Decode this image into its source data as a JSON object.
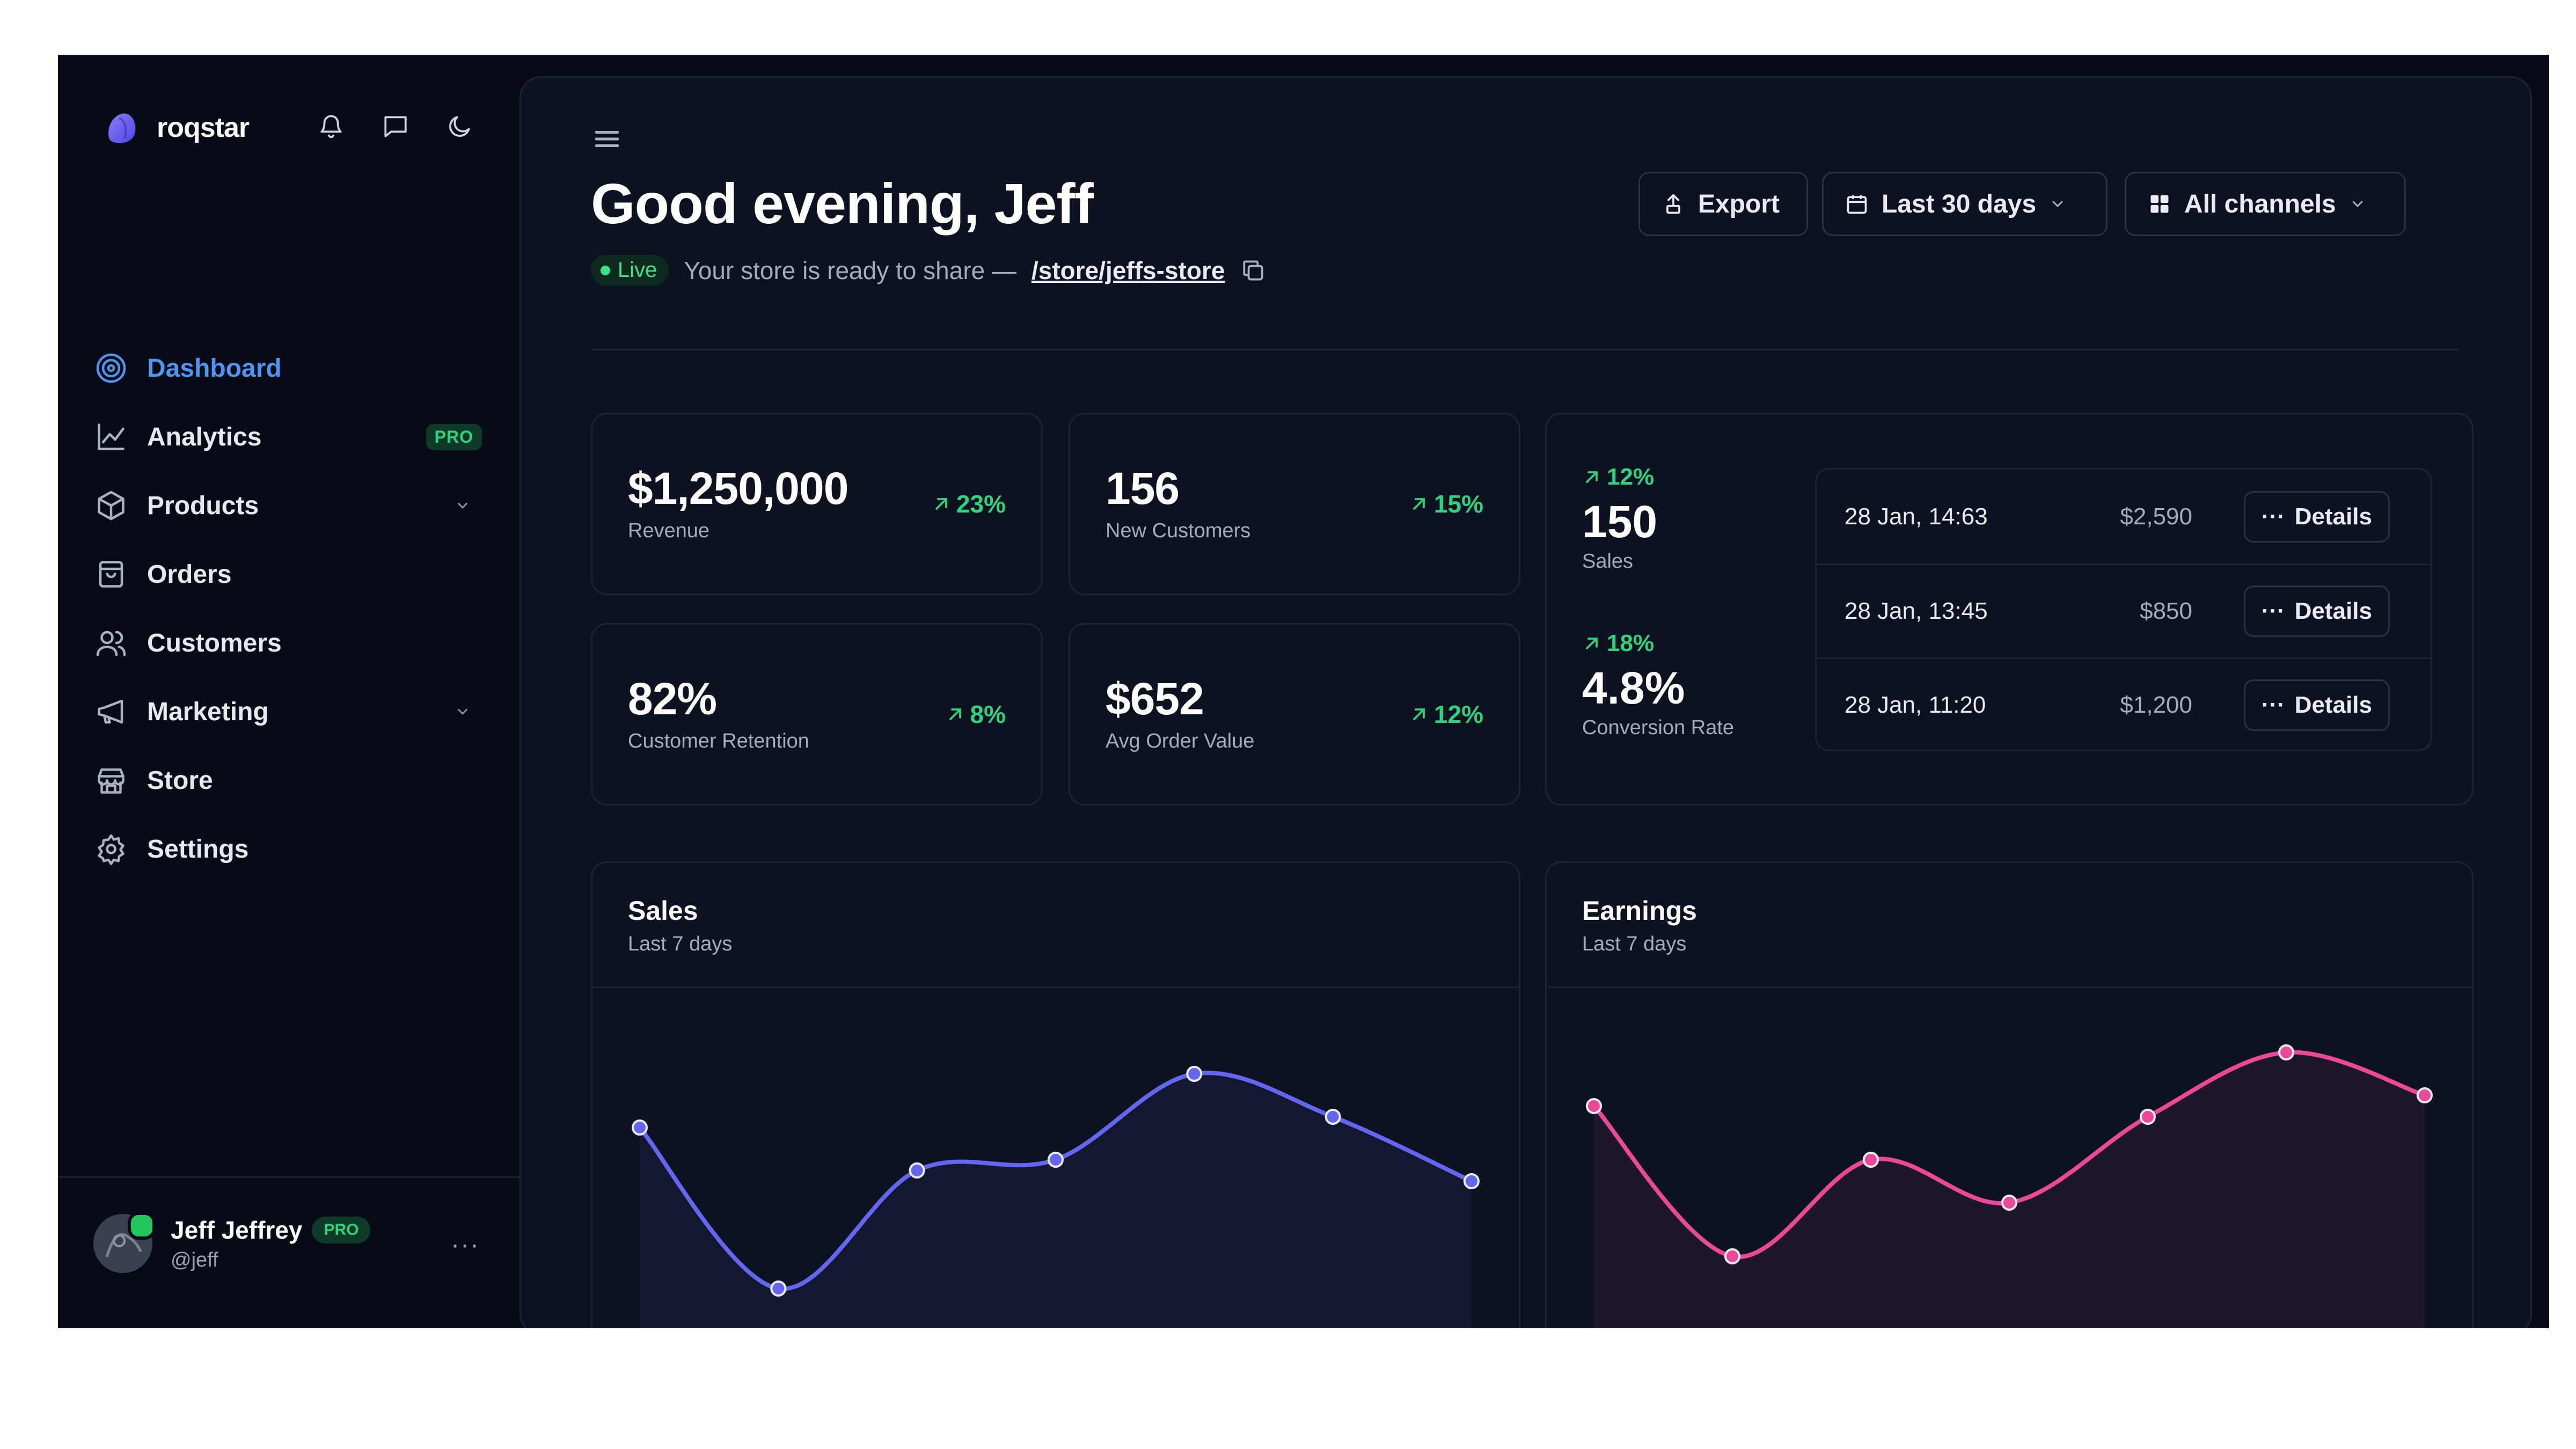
{
  "app": {
    "name": "roqstar"
  },
  "sidebar": {
    "items": [
      {
        "label": "Dashboard",
        "icon": "target-icon",
        "active": true
      },
      {
        "label": "Analytics",
        "icon": "chart-line-icon",
        "badge": "PRO"
      },
      {
        "label": "Products",
        "icon": "box-icon",
        "expandable": true
      },
      {
        "label": "Orders",
        "icon": "shopping-bag-icon"
      },
      {
        "label": "Customers",
        "icon": "users-icon"
      },
      {
        "label": "Marketing",
        "icon": "megaphone-icon",
        "expandable": true
      },
      {
        "label": "Store",
        "icon": "store-icon"
      },
      {
        "label": "Settings",
        "icon": "gear-icon"
      }
    ],
    "user": {
      "name": "Jeff Jeffrey",
      "badge": "PRO",
      "handle": "@jeff",
      "more": "···"
    }
  },
  "header": {
    "greeting": "Good evening, Jeff",
    "live": "Live",
    "store_text": "Your store is ready to share —",
    "store_link": "/store/jeffs-store",
    "export": "Export",
    "range": "Last 30 days",
    "channels": "All channels"
  },
  "kpis": [
    {
      "value": "$1,250,000",
      "label": "Revenue",
      "delta": "23%"
    },
    {
      "value": "156",
      "label": "New Customers",
      "delta": "15%"
    },
    {
      "value": "82%",
      "label": "Customer Retention",
      "delta": "8%"
    },
    {
      "value": "$652",
      "label": "Avg Order Value",
      "delta": "12%"
    }
  ],
  "sales_summary": {
    "sales": {
      "delta": "12%",
      "value": "150",
      "label": "Sales"
    },
    "conversion": {
      "delta": "18%",
      "value": "4.8%",
      "label": "Conversion Rate"
    },
    "transactions": [
      {
        "date": "28 Jan, 14:63",
        "amount": "$2,590",
        "action": "Details"
      },
      {
        "date": "28 Jan, 13:45",
        "amount": "$850",
        "action": "Details"
      },
      {
        "date": "28 Jan, 11:20",
        "amount": "$1,200",
        "action": "Details"
      }
    ]
  },
  "colors": {
    "accent": "#4f95f2",
    "positive": "#2fd37f",
    "sales_line": "#6366f1",
    "earnings_line": "#ec4899"
  },
  "chart_data": [
    {
      "type": "line",
      "title": "Sales",
      "subtitle": "Last 7 days",
      "x": [
        1,
        2,
        3,
        4,
        5,
        6,
        7
      ],
      "values": [
        68,
        38,
        60,
        62,
        78,
        70,
        58
      ],
      "ylim": [
        30,
        90
      ],
      "color": "#6366f1",
      "grid": false
    },
    {
      "type": "line",
      "title": "Earnings",
      "subtitle": "Last 7 days",
      "x": [
        1,
        2,
        3,
        4,
        5,
        6,
        7
      ],
      "values": [
        72,
        44,
        62,
        54,
        70,
        82,
        74
      ],
      "ylim": [
        30,
        90
      ],
      "color": "#ec4899",
      "grid": false
    }
  ]
}
